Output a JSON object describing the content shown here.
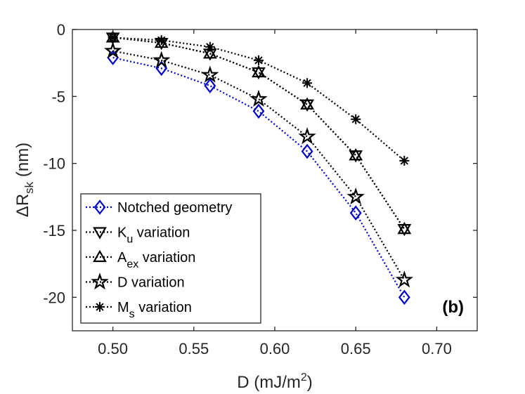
{
  "chart_data": {
    "type": "line",
    "title": "",
    "panel_label": "(b)",
    "xlabel": {
      "base": "D (mJ/m",
      "sup": "2",
      "end": ")"
    },
    "ylabel": {
      "base": "ΔR",
      "sub": "sk",
      "end": " (nm)"
    },
    "xlim": [
      0.475,
      0.725
    ],
    "ylim": [
      -22.5,
      0
    ],
    "xticks": [
      0.5,
      0.55,
      0.6,
      0.65,
      0.7
    ],
    "xtick_labels": [
      "0.50",
      "0.55",
      "0.60",
      "0.65",
      "0.70"
    ],
    "yticks": [
      0,
      -5,
      -10,
      -15,
      -20
    ],
    "ytick_labels": [
      "0",
      "-5",
      "-10",
      "-15",
      "-20"
    ],
    "grid": false,
    "legend_position": "bottom-left",
    "x": [
      0.5,
      0.53,
      0.56,
      0.59,
      0.62,
      0.65,
      0.68
    ],
    "series": [
      {
        "name": "Notched geometry",
        "label": {
          "main": "Notched geometry",
          "sub": "",
          "tail": ""
        },
        "marker": "diamond",
        "color": "#0000CC",
        "values": [
          -2.1,
          -2.9,
          -4.2,
          -6.1,
          -9.1,
          -13.7,
          -20.0
        ]
      },
      {
        "name": "K_u variation",
        "label": {
          "main": "K",
          "sub": "u",
          "tail": " variation"
        },
        "marker": "triangle-down",
        "color": "#000000",
        "values": [
          -0.6,
          -1.0,
          -1.8,
          -3.2,
          -5.6,
          -9.4,
          -14.9
        ]
      },
      {
        "name": "A_ex variation",
        "label": {
          "main": "A",
          "sub": "ex",
          "tail": " variation"
        },
        "marker": "triangle-up",
        "color": "#000000",
        "values": [
          -0.6,
          -1.0,
          -1.8,
          -3.2,
          -5.6,
          -9.4,
          -14.9
        ]
      },
      {
        "name": "D variation",
        "label": {
          "main": "D variation",
          "sub": "",
          "tail": ""
        },
        "marker": "pentagram",
        "color": "#000000",
        "values": [
          -1.6,
          -2.3,
          -3.4,
          -5.2,
          -8.0,
          -12.5,
          -18.7
        ]
      },
      {
        "name": "M_s variation",
        "label": {
          "main": "M",
          "sub": "s",
          "tail": " variation"
        },
        "marker": "asterisk",
        "color": "#000000",
        "values": [
          -0.6,
          -0.8,
          -1.3,
          -2.3,
          -4.0,
          -6.7,
          -9.8
        ]
      }
    ]
  }
}
